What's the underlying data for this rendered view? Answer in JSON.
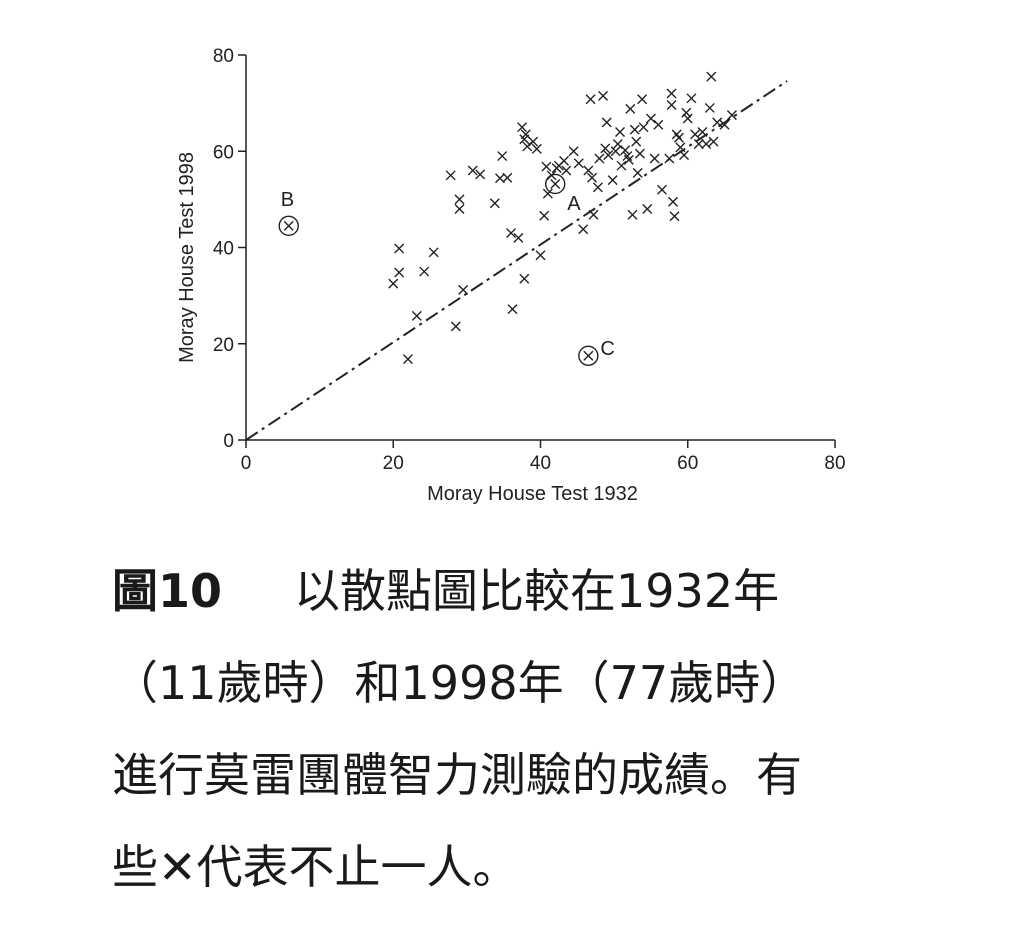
{
  "chart_data": {
    "type": "scatter",
    "xlabel": "Moray House Test 1932",
    "ylabel": "Moray House Test 1998",
    "xlim": [
      0,
      80
    ],
    "ylim": [
      0,
      80
    ],
    "xticks": [
      0,
      20,
      40,
      60,
      80
    ],
    "yticks": [
      0,
      20,
      40,
      60,
      80
    ],
    "grid": false,
    "legend": "none",
    "marker": "x",
    "reference_line": {
      "style": "dash-dot",
      "x": [
        0,
        73.5
      ],
      "y": [
        0,
        74.6
      ]
    },
    "points": [
      [
        20.0,
        32.5
      ],
      [
        20.8,
        34.8
      ],
      [
        20.8,
        39.8
      ],
      [
        22.0,
        16.8
      ],
      [
        23.2,
        25.8
      ],
      [
        24.2,
        35.0
      ],
      [
        25.5,
        39.0
      ],
      [
        27.8,
        55.0
      ],
      [
        28.5,
        23.6
      ],
      [
        29.0,
        50.0
      ],
      [
        29.0,
        48.0
      ],
      [
        29.5,
        31.2
      ],
      [
        30.8,
        56.0
      ],
      [
        31.8,
        55.2
      ],
      [
        33.8,
        49.2
      ],
      [
        34.5,
        54.4
      ],
      [
        34.8,
        59.0
      ],
      [
        35.5,
        54.5
      ],
      [
        36.0,
        43.0
      ],
      [
        36.2,
        27.2
      ],
      [
        37.0,
        42.0
      ],
      [
        37.5,
        65.0
      ],
      [
        37.8,
        33.5
      ],
      [
        37.8,
        62.5
      ],
      [
        38.0,
        63.5
      ],
      [
        38.2,
        61.0
      ],
      [
        39.0,
        62.0
      ],
      [
        39.5,
        60.5
      ],
      [
        40.0,
        38.4
      ],
      [
        40.5,
        46.6
      ],
      [
        40.8,
        56.8
      ],
      [
        41.0,
        51.2
      ],
      [
        41.5,
        55.0
      ],
      [
        42.2,
        56.5
      ],
      [
        42.5,
        57.0
      ],
      [
        43.2,
        58.0
      ],
      [
        43.5,
        56.0
      ],
      [
        44.5,
        60.0
      ],
      [
        45.2,
        57.5
      ],
      [
        45.8,
        43.8
      ],
      [
        46.5,
        56.0
      ],
      [
        46.8,
        70.8
      ],
      [
        47.0,
        54.5
      ],
      [
        47.2,
        46.8
      ],
      [
        47.8,
        52.5
      ],
      [
        48.0,
        58.5
      ],
      [
        48.5,
        71.5
      ],
      [
        48.8,
        60.6
      ],
      [
        49.0,
        66.0
      ],
      [
        49.2,
        59.2
      ],
      [
        49.8,
        54.0
      ],
      [
        50.2,
        60.0
      ],
      [
        50.5,
        61.5
      ],
      [
        50.8,
        64.0
      ],
      [
        51.0,
        57.0
      ],
      [
        51.5,
        60.2
      ],
      [
        51.8,
        59.0
      ],
      [
        52.0,
        58.2
      ],
      [
        52.2,
        68.8
      ],
      [
        52.5,
        46.8
      ],
      [
        52.8,
        64.5
      ],
      [
        53.0,
        62.0
      ],
      [
        53.2,
        55.5
      ],
      [
        53.5,
        59.5
      ],
      [
        53.8,
        70.8
      ],
      [
        54.0,
        65.0
      ],
      [
        54.5,
        48.0
      ],
      [
        55.0,
        66.8
      ],
      [
        55.5,
        58.5
      ],
      [
        56.0,
        65.5
      ],
      [
        56.5,
        52.0
      ],
      [
        57.5,
        58.5
      ],
      [
        57.8,
        72.0
      ],
      [
        57.8,
        69.6
      ],
      [
        58.0,
        49.5
      ],
      [
        58.2,
        46.5
      ],
      [
        58.5,
        63.5
      ],
      [
        58.8,
        62.8
      ],
      [
        59.0,
        60.8
      ],
      [
        59.5,
        59.2
      ],
      [
        59.8,
        68.0
      ],
      [
        60.0,
        66.8
      ],
      [
        60.5,
        71.0
      ],
      [
        61.0,
        63.5
      ],
      [
        61.5,
        61.5
      ],
      [
        62.0,
        64.0
      ],
      [
        62.5,
        61.5
      ],
      [
        63.0,
        69.0
      ],
      [
        63.2,
        75.5
      ],
      [
        63.5,
        62.0
      ],
      [
        64.0,
        66.0
      ],
      [
        65.0,
        65.5
      ],
      [
        66.0,
        67.5
      ]
    ],
    "annotated_points": [
      {
        "label": "A",
        "x": 42.0,
        "y": 53.2
      },
      {
        "label": "B",
        "x": 5.8,
        "y": 44.5
      },
      {
        "label": "C",
        "x": 46.5,
        "y": 17.5
      }
    ]
  },
  "caption": {
    "figure_label": "圖10",
    "lines": [
      "以散點圖比較在1932年",
      "（11歲時）和1998年（77歲時）",
      "進行莫雷團體智力測驗的成績。有",
      "些✕代表不止一人。"
    ]
  }
}
